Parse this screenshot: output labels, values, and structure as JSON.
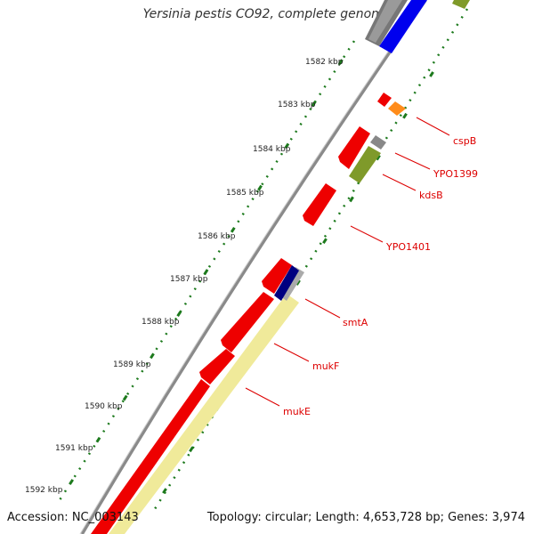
{
  "title": "Yersinia pestis CO92, complete genome",
  "accession_text": "Accession: NC_003143",
  "summary_text": "Topology: circular; Length: 4,653,728 bp; Genes: 3,974",
  "colors": {
    "backbone": "#8a8a8a",
    "ticks": "#1d7a1d",
    "label": "#dd0000",
    "cds": "#ee0000",
    "trna": "#ff8c1a",
    "rrna": "#7f9a2a",
    "misc": "#888888",
    "blue": "#0000ee",
    "navy": "#000080",
    "pale": "#f0ea9a"
  },
  "ticks": [
    {
      "label": "1582 kbp"
    },
    {
      "label": "1583 kbp"
    },
    {
      "label": "1584 kbp"
    },
    {
      "label": "1585 kbp"
    },
    {
      "label": "1586 kbp"
    },
    {
      "label": "1587 kbp"
    },
    {
      "label": "1588 kbp"
    },
    {
      "label": "1589 kbp"
    },
    {
      "label": "1590 kbp"
    },
    {
      "label": "1591 kbp"
    },
    {
      "label": "1592 kbp"
    }
  ],
  "gene_labels": [
    {
      "name": "cspB"
    },
    {
      "name": "YPO1399"
    },
    {
      "name": "kdsB"
    },
    {
      "name": "YPO1401"
    },
    {
      "name": "smtA"
    },
    {
      "name": "mukF"
    },
    {
      "name": "mukE"
    }
  ]
}
